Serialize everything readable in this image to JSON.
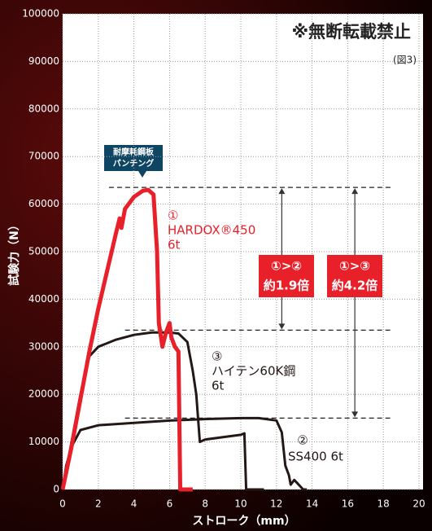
{
  "chart_data": {
    "type": "line",
    "title": "※無断転載禁止",
    "figure_label": "(図3)",
    "x_label": "ストローク（mm）",
    "y_label": "試験力（N）",
    "xlim": [
      0,
      20
    ],
    "xticks": [
      0,
      2,
      4,
      6,
      8,
      10,
      12,
      14,
      16,
      18,
      20
    ],
    "ylim": [
      0,
      100000
    ],
    "yticks": [
      0,
      10000,
      20000,
      30000,
      40000,
      50000,
      60000,
      70000,
      80000,
      90000,
      100000
    ],
    "grid": true,
    "callout": [
      "耐摩耗鋼板",
      "パンチング"
    ],
    "series": [
      {
        "label": [
          "①",
          "HARDOX®450",
          "6t"
        ],
        "color": "#e8202a",
        "x": [
          0,
          0.5,
          1,
          1.5,
          2,
          2.5,
          3,
          3.2,
          3.3,
          3.5,
          4,
          4.5,
          4.8,
          5.1,
          5.3,
          5.4,
          5.6,
          5.8,
          6,
          6.1,
          6.3,
          6.5,
          6.6,
          7.3
        ],
        "values": [
          0,
          9000,
          19000,
          29000,
          38000,
          46000,
          54000,
          57000,
          55000,
          59000,
          61500,
          62800,
          63000,
          62000,
          50000,
          35000,
          30000,
          33000,
          35000,
          32000,
          30000,
          29000,
          0,
          0
        ]
      },
      {
        "label": [
          "③",
          "ハイテン60K鋼",
          "6t"
        ],
        "color": "#231815",
        "x": [
          0,
          0.5,
          1,
          1.5,
          2,
          3,
          4,
          5,
          6,
          6.5,
          7,
          7.3,
          7.5,
          7.7,
          8,
          9,
          10,
          10.2,
          10.3,
          11.3
        ],
        "values": [
          0,
          10000,
          20000,
          28000,
          30000,
          31500,
          32500,
          33000,
          33000,
          32800,
          31000,
          25000,
          20000,
          10000,
          10500,
          11000,
          11500,
          11800,
          0,
          0
        ]
      },
      {
        "label": [
          "②",
          "SS400 6t"
        ],
        "color": "#231815",
        "x": [
          0,
          0.2,
          0.5,
          1,
          2,
          4,
          6,
          8,
          10,
          11,
          12,
          12.3,
          12.5,
          12.7,
          12.8,
          13,
          13.5,
          13.7
        ],
        "values": [
          0,
          5000,
          9000,
          12500,
          13500,
          14000,
          14500,
          14800,
          15000,
          15000,
          14500,
          12000,
          5000,
          3000,
          1000,
          2000,
          0,
          0
        ]
      }
    ],
    "reference_lines": [
      63500,
      33500,
      15000
    ],
    "ratios": [
      {
        "lines": [
          "①>②",
          "約1.9倍"
        ]
      },
      {
        "lines": [
          "①>③",
          "約4.2倍"
        ]
      }
    ]
  }
}
